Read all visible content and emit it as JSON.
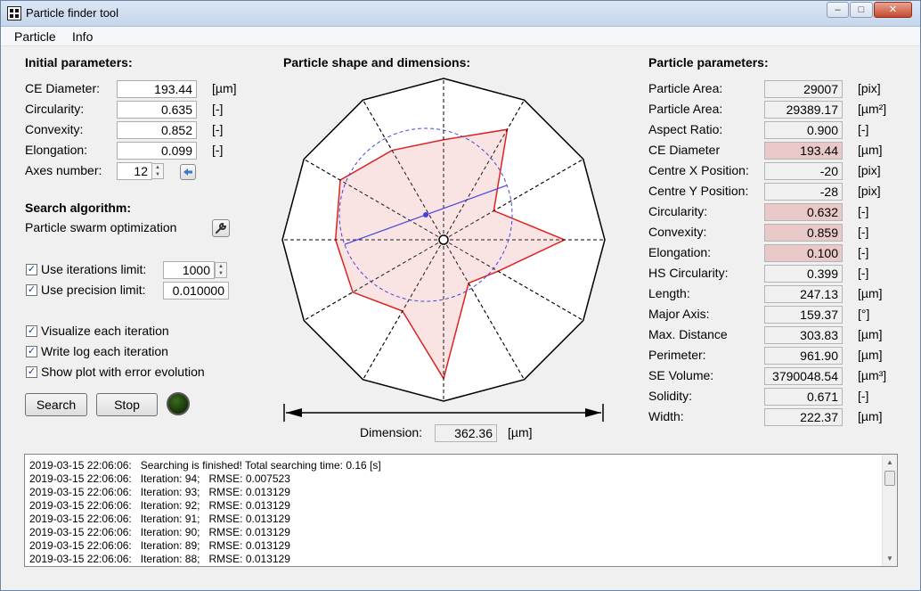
{
  "window": {
    "title": "Particle finder tool",
    "controls": [
      "–",
      "□",
      "✕"
    ]
  },
  "menu": [
    "Particle",
    "Info"
  ],
  "initial": {
    "heading": "Initial parameters:",
    "fields": [
      {
        "label": "CE Diameter:",
        "value": "193.44",
        "unit": "[µm]"
      },
      {
        "label": "Circularity:",
        "value": "0.635",
        "unit": "[-]"
      },
      {
        "label": "Convexity:",
        "value": "0.852",
        "unit": "[-]"
      },
      {
        "label": "Elongation:",
        "value": "0.099",
        "unit": "[-]"
      }
    ],
    "axes_label": "Axes number:",
    "axes_value": "12",
    "apply_icon": "arrow-left-icon"
  },
  "search": {
    "heading": "Search algorithm:",
    "algorithm": "Particle swarm optimization",
    "settings_icon": "wrench-icon",
    "iter_label": "Use iterations limit:",
    "iter_value": "1000",
    "iter_checked": true,
    "prec_label": "Use precision limit:",
    "prec_value": "0.010000",
    "prec_checked": true,
    "options": [
      {
        "label": "Visualize each iteration",
        "checked": true
      },
      {
        "label": "Write log each iteration",
        "checked": true
      },
      {
        "label": "Show plot with error evolution",
        "checked": true
      }
    ],
    "search_button": "Search",
    "stop_button": "Stop",
    "status_color": "#1e3f0c"
  },
  "shape": {
    "heading": "Particle shape and dimensions:",
    "dimension_label": "Dimension:",
    "dimension_value": "362.36",
    "dimension_unit": "[µm]",
    "colors": {
      "outline": "#dd2222",
      "fill": "#f8dede",
      "circle": "#4444dd",
      "axes": "#000000"
    }
  },
  "params": {
    "heading": "Particle parameters:",
    "rows": [
      {
        "label": "Particle Area:",
        "value": "29007",
        "unit": "[pix]",
        "highlight": false
      },
      {
        "label": "Particle Area:",
        "value": "29389.17",
        "unit": "[µm²]",
        "highlight": false
      },
      {
        "label": "Aspect Ratio:",
        "value": "0.900",
        "unit": "[-]",
        "highlight": false
      },
      {
        "label": "CE Diameter",
        "value": "193.44",
        "unit": "[µm]",
        "highlight": true
      },
      {
        "label": "Centre X Position:",
        "value": "-20",
        "unit": "[pix]",
        "highlight": false
      },
      {
        "label": "Centre Y Position:",
        "value": "-28",
        "unit": "[pix]",
        "highlight": false
      },
      {
        "label": "Circularity:",
        "value": "0.632",
        "unit": "[-]",
        "highlight": true
      },
      {
        "label": "Convexity:",
        "value": "0.859",
        "unit": "[-]",
        "highlight": true
      },
      {
        "label": "Elongation:",
        "value": "0.100",
        "unit": "[-]",
        "highlight": true
      },
      {
        "label": "HS Circularity:",
        "value": "0.399",
        "unit": "[-]",
        "highlight": false
      },
      {
        "label": "Length:",
        "value": "247.13",
        "unit": "[µm]",
        "highlight": false
      },
      {
        "label": "Major Axis:",
        "value": "159.37",
        "unit": "[°]",
        "highlight": false
      },
      {
        "label": "Max. Distance",
        "value": "303.83",
        "unit": "[µm]",
        "highlight": false
      },
      {
        "label": "Perimeter:",
        "value": "961.90",
        "unit": "[µm]",
        "highlight": false
      },
      {
        "label": "SE Volume:",
        "value": "3790048.54",
        "unit": "[µm³]",
        "highlight": false
      },
      {
        "label": "Solidity:",
        "value": "0.671",
        "unit": "[-]",
        "highlight": false
      },
      {
        "label": "Width:",
        "value": "222.37",
        "unit": "[µm]",
        "highlight": false
      }
    ]
  },
  "log": [
    "2019-03-15 22:06:06:   Searching is finished! Total searching time: 0.16 [s]",
    "2019-03-15 22:06:06:   Iteration: 94;   RMSE: 0.007523",
    "2019-03-15 22:06:06:   Iteration: 93;   RMSE: 0.013129",
    "2019-03-15 22:06:06:   Iteration: 92;   RMSE: 0.013129",
    "2019-03-15 22:06:06:   Iteration: 91;   RMSE: 0.013129",
    "2019-03-15 22:06:06:   Iteration: 90;   RMSE: 0.013129",
    "2019-03-15 22:06:06:   Iteration: 89;   RMSE: 0.013129",
    "2019-03-15 22:06:06:   Iteration: 88;   RMSE: 0.013129"
  ]
}
